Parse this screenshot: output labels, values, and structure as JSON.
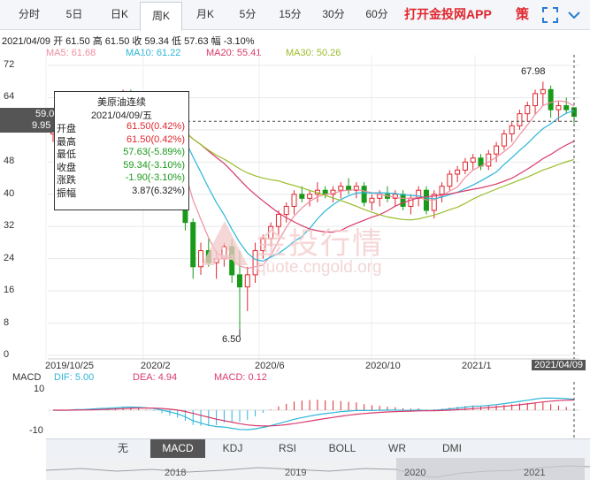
{
  "tabs": [
    "分时",
    "5日",
    "日K",
    "周K",
    "月K",
    "5分",
    "15分",
    "30分",
    "60分"
  ],
  "active_tab": "周K",
  "app_link": "打开金投网APP",
  "policy_label": "策",
  "info_line": "2021/04/09  开 61.50  高 61.50  收 59.34  低 57.63  幅 -3.10%",
  "ma": [
    {
      "label": "MA5: 61.68",
      "color": "#f08fa0"
    },
    {
      "label": "MA10: 61.22",
      "color": "#2cb6d9"
    },
    {
      "label": "MA20: 55.41",
      "color": "#d93a6a"
    },
    {
      "label": "MA30: 50.26",
      "color": "#9bbd2b"
    }
  ],
  "tooltip": {
    "title": "美原油连续",
    "date": "2021/04/09/五",
    "rows": [
      {
        "k": "开盘",
        "v": "61.50(0.42%)",
        "color": "#e0262d"
      },
      {
        "k": "最高",
        "v": "61.50(0.42%)",
        "color": "#e0262d"
      },
      {
        "k": "最低",
        "v": "57.63(-5.89%)",
        "color": "#1a9a1a"
      },
      {
        "k": "收盘",
        "v": "59.34(-3.10%)",
        "color": "#1a9a1a"
      },
      {
        "k": "涨跌",
        "v": "-1.90(-3.10%)",
        "color": "#1a9a1a"
      },
      {
        "k": "振幅",
        "v": "3.87(6.32%)",
        "color": "#222"
      }
    ]
  },
  "y_ticks": [
    "72",
    "64",
    "56",
    "48",
    "40",
    "32",
    "24",
    "16",
    "8",
    "0"
  ],
  "cursor_price": "59.0",
  "cursor_sub": "9.95",
  "high_label": "67.98",
  "low_label": "6.50",
  "x_ticks": [
    "2019/10/25",
    "2020/2",
    "2020/6",
    "2020/10",
    "2021/1",
    "2021/04/09"
  ],
  "watermark_cn": "金投行情",
  "watermark_url": "quote.cngold.org",
  "macd": {
    "label": "MACD",
    "dif": "DIF: 5.00",
    "dea": "DEA: 4.94",
    "macd": "MACD: 0.12",
    "dif_color": "#2cb6d9",
    "dea_color": "#d93a6a",
    "macd_color": "#d93a6a",
    "y_ticks": [
      "10",
      "0",
      "-10"
    ]
  },
  "indicator_tabs": [
    "无",
    "MACD",
    "KDJ",
    "RSI",
    "BOLL",
    "WR",
    "DMI"
  ],
  "active_indicator": "MACD",
  "nav_labels": [
    "2018",
    "2019",
    "2020",
    "2021"
  ],
  "arrows": [
    "▲",
    "▼"
  ],
  "colors": {
    "up": "#e0262d",
    "down": "#1a9a1a",
    "accent": "#e0262d"
  },
  "chart_data": {
    "type": "candlestick",
    "title": "美原油连续",
    "ylim": [
      0,
      74
    ],
    "candles": [
      {
        "o": 55,
        "h": 57,
        "l": 53,
        "c": 56
      },
      {
        "o": 56,
        "h": 58,
        "l": 54,
        "c": 55
      },
      {
        "o": 55,
        "h": 57,
        "l": 53,
        "c": 57
      },
      {
        "o": 57,
        "h": 60,
        "l": 55,
        "c": 59
      },
      {
        "o": 59,
        "h": 61,
        "l": 57,
        "c": 58
      },
      {
        "o": 58,
        "h": 60,
        "l": 56,
        "c": 60
      },
      {
        "o": 60,
        "h": 62,
        "l": 58,
        "c": 61
      },
      {
        "o": 61,
        "h": 63,
        "l": 59,
        "c": 60
      },
      {
        "o": 60,
        "h": 64,
        "l": 58,
        "c": 62
      },
      {
        "o": 62,
        "h": 66,
        "l": 60,
        "c": 64
      },
      {
        "o": 64,
        "h": 66,
        "l": 61,
        "c": 62
      },
      {
        "o": 62,
        "h": 64,
        "l": 59,
        "c": 60
      },
      {
        "o": 60,
        "h": 62,
        "l": 57,
        "c": 58
      },
      {
        "o": 58,
        "h": 60,
        "l": 55,
        "c": 56
      },
      {
        "o": 56,
        "h": 57,
        "l": 49,
        "c": 50
      },
      {
        "o": 50,
        "h": 52,
        "l": 45,
        "c": 46
      },
      {
        "o": 46,
        "h": 48,
        "l": 41,
        "c": 42
      },
      {
        "o": 42,
        "h": 43,
        "l": 31,
        "c": 33
      },
      {
        "o": 33,
        "h": 34,
        "l": 19,
        "c": 22
      },
      {
        "o": 22,
        "h": 28,
        "l": 20,
        "c": 26
      },
      {
        "o": 26,
        "h": 29,
        "l": 22,
        "c": 23
      },
      {
        "o": 23,
        "h": 26,
        "l": 19,
        "c": 24
      },
      {
        "o": 24,
        "h": 28,
        "l": 22,
        "c": 27
      },
      {
        "o": 27,
        "h": 29,
        "l": 18,
        "c": 20
      },
      {
        "o": 20,
        "h": 26,
        "l": 6.5,
        "c": 17
      },
      {
        "o": 17,
        "h": 22,
        "l": 11,
        "c": 20
      },
      {
        "o": 20,
        "h": 28,
        "l": 18,
        "c": 26
      },
      {
        "o": 26,
        "h": 30,
        "l": 24,
        "c": 29
      },
      {
        "o": 29,
        "h": 33,
        "l": 27,
        "c": 32
      },
      {
        "o": 32,
        "h": 36,
        "l": 30,
        "c": 35
      },
      {
        "o": 35,
        "h": 38,
        "l": 33,
        "c": 37
      },
      {
        "o": 37,
        "h": 41,
        "l": 35,
        "c": 40
      },
      {
        "o": 40,
        "h": 42,
        "l": 38,
        "c": 39
      },
      {
        "o": 39,
        "h": 41,
        "l": 37,
        "c": 40
      },
      {
        "o": 40,
        "h": 43,
        "l": 38,
        "c": 41
      },
      {
        "o": 41,
        "h": 42,
        "l": 39,
        "c": 40
      },
      {
        "o": 40,
        "h": 42,
        "l": 38,
        "c": 41
      },
      {
        "o": 41,
        "h": 43,
        "l": 39,
        "c": 42
      },
      {
        "o": 42,
        "h": 44,
        "l": 40,
        "c": 41
      },
      {
        "o": 41,
        "h": 43,
        "l": 39,
        "c": 42
      },
      {
        "o": 42,
        "h": 43,
        "l": 37,
        "c": 38
      },
      {
        "o": 38,
        "h": 40,
        "l": 36,
        "c": 39
      },
      {
        "o": 39,
        "h": 41,
        "l": 37,
        "c": 40
      },
      {
        "o": 40,
        "h": 42,
        "l": 38,
        "c": 39
      },
      {
        "o": 39,
        "h": 41,
        "l": 37,
        "c": 40
      },
      {
        "o": 40,
        "h": 41,
        "l": 36,
        "c": 37
      },
      {
        "o": 37,
        "h": 40,
        "l": 35,
        "c": 39
      },
      {
        "o": 39,
        "h": 42,
        "l": 37,
        "c": 41
      },
      {
        "o": 41,
        "h": 42,
        "l": 35,
        "c": 36
      },
      {
        "o": 36,
        "h": 41,
        "l": 34,
        "c": 40
      },
      {
        "o": 40,
        "h": 43,
        "l": 38,
        "c": 42
      },
      {
        "o": 42,
        "h": 46,
        "l": 41,
        "c": 45
      },
      {
        "o": 45,
        "h": 47,
        "l": 43,
        "c": 46
      },
      {
        "o": 46,
        "h": 49,
        "l": 45,
        "c": 48
      },
      {
        "o": 48,
        "h": 50,
        "l": 46,
        "c": 49
      },
      {
        "o": 49,
        "h": 50,
        "l": 46,
        "c": 47
      },
      {
        "o": 47,
        "h": 51,
        "l": 46,
        "c": 50
      },
      {
        "o": 50,
        "h": 53,
        "l": 48,
        "c": 52
      },
      {
        "o": 52,
        "h": 56,
        "l": 51,
        "c": 55
      },
      {
        "o": 55,
        "h": 58,
        "l": 53,
        "c": 57
      },
      {
        "o": 57,
        "h": 61,
        "l": 56,
        "c": 60
      },
      {
        "o": 60,
        "h": 63,
        "l": 58,
        "c": 62
      },
      {
        "o": 62,
        "h": 66,
        "l": 60,
        "c": 65
      },
      {
        "o": 65,
        "h": 67.98,
        "l": 62,
        "c": 66
      },
      {
        "o": 66,
        "h": 67,
        "l": 59,
        "c": 61
      },
      {
        "o": 61,
        "h": 63,
        "l": 58,
        "c": 62
      },
      {
        "o": 62,
        "h": 64,
        "l": 60,
        "c": 61
      },
      {
        "o": 61.5,
        "h": 61.5,
        "l": 57.63,
        "c": 59.34
      }
    ]
  }
}
